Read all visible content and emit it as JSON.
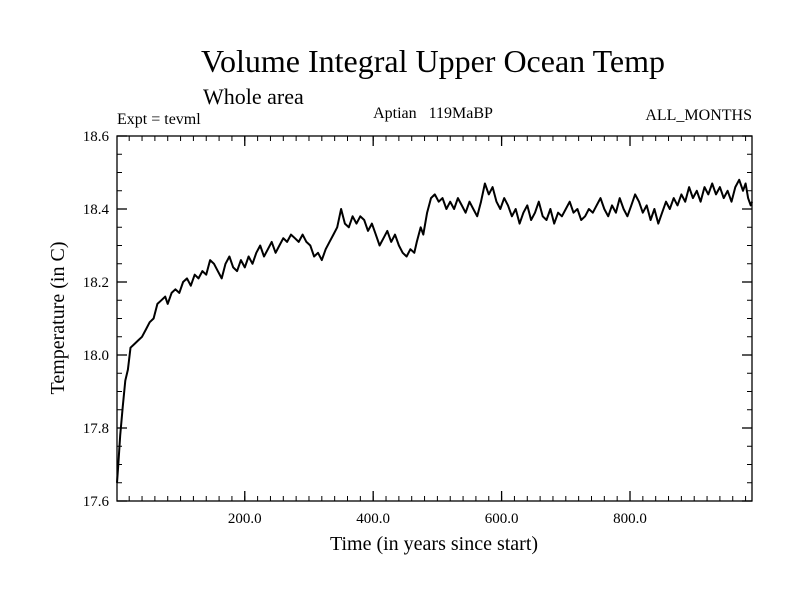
{
  "chart_data": {
    "type": "line",
    "title": "Volume Integral Upper Ocean Temp",
    "subtitle": "Whole area",
    "expt_label": "Expt = tevml",
    "center_label": "Aptian   119MaBP",
    "right_label": "ALL_MONTHS",
    "xlabel": "Time (in years since start)",
    "ylabel": "Temperature (in C)",
    "xlim": [
      1,
      990
    ],
    "ylim": [
      17.6,
      18.6
    ],
    "x_ticks": [
      {
        "value": 200,
        "label": "200.0"
      },
      {
        "value": 400,
        "label": "400.0"
      },
      {
        "value": 600,
        "label": "600.0"
      },
      {
        "value": 800,
        "label": "800.0"
      }
    ],
    "y_ticks": [
      {
        "value": 17.6,
        "label": "17.6"
      },
      {
        "value": 17.8,
        "label": "17.8"
      },
      {
        "value": 18.0,
        "label": "18.0"
      },
      {
        "value": 18.2,
        "label": "18.2"
      },
      {
        "value": 18.4,
        "label": "18.4"
      },
      {
        "value": 18.6,
        "label": "18.6"
      }
    ],
    "series": [
      {
        "name": "Volume integral upper ocean temperature",
        "color": "#000000",
        "points": [
          [
            1,
            17.65
          ],
          [
            3,
            17.7
          ],
          [
            6,
            17.78
          ],
          [
            10,
            17.86
          ],
          [
            14,
            17.93
          ],
          [
            18,
            17.96
          ],
          [
            22,
            18.02
          ],
          [
            28,
            18.03
          ],
          [
            34,
            18.04
          ],
          [
            40,
            18.05
          ],
          [
            46,
            18.07
          ],
          [
            52,
            18.09
          ],
          [
            58,
            18.1
          ],
          [
            64,
            18.14
          ],
          [
            70,
            18.15
          ],
          [
            76,
            18.16
          ],
          [
            80,
            18.14
          ],
          [
            86,
            18.17
          ],
          [
            92,
            18.18
          ],
          [
            98,
            18.17
          ],
          [
            104,
            18.2
          ],
          [
            110,
            18.21
          ],
          [
            116,
            18.19
          ],
          [
            122,
            18.22
          ],
          [
            128,
            18.21
          ],
          [
            134,
            18.23
          ],
          [
            140,
            18.22
          ],
          [
            146,
            18.26
          ],
          [
            152,
            18.25
          ],
          [
            158,
            18.23
          ],
          [
            164,
            18.21
          ],
          [
            170,
            18.25
          ],
          [
            176,
            18.27
          ],
          [
            182,
            18.24
          ],
          [
            188,
            18.23
          ],
          [
            194,
            18.26
          ],
          [
            200,
            18.24
          ],
          [
            206,
            18.27
          ],
          [
            212,
            18.25
          ],
          [
            218,
            18.28
          ],
          [
            224,
            18.3
          ],
          [
            230,
            18.27
          ],
          [
            236,
            18.29
          ],
          [
            242,
            18.31
          ],
          [
            248,
            18.28
          ],
          [
            254,
            18.3
          ],
          [
            260,
            18.32
          ],
          [
            266,
            18.31
          ],
          [
            272,
            18.33
          ],
          [
            278,
            18.32
          ],
          [
            284,
            18.31
          ],
          [
            290,
            18.33
          ],
          [
            296,
            18.31
          ],
          [
            302,
            18.3
          ],
          [
            308,
            18.27
          ],
          [
            314,
            18.28
          ],
          [
            320,
            18.26
          ],
          [
            326,
            18.29
          ],
          [
            332,
            18.31
          ],
          [
            338,
            18.33
          ],
          [
            344,
            18.35
          ],
          [
            350,
            18.4
          ],
          [
            356,
            18.36
          ],
          [
            362,
            18.35
          ],
          [
            368,
            18.38
          ],
          [
            374,
            18.36
          ],
          [
            380,
            18.38
          ],
          [
            386,
            18.37
          ],
          [
            392,
            18.34
          ],
          [
            398,
            18.36
          ],
          [
            404,
            18.33
          ],
          [
            410,
            18.3
          ],
          [
            416,
            18.32
          ],
          [
            422,
            18.34
          ],
          [
            428,
            18.31
          ],
          [
            434,
            18.33
          ],
          [
            440,
            18.3
          ],
          [
            446,
            18.28
          ],
          [
            452,
            18.27
          ],
          [
            458,
            18.29
          ],
          [
            464,
            18.28
          ],
          [
            468,
            18.31
          ],
          [
            474,
            18.35
          ],
          [
            478,
            18.33
          ],
          [
            484,
            18.39
          ],
          [
            490,
            18.43
          ],
          [
            496,
            18.44
          ],
          [
            502,
            18.42
          ],
          [
            508,
            18.43
          ],
          [
            514,
            18.4
          ],
          [
            520,
            18.42
          ],
          [
            526,
            18.4
          ],
          [
            532,
            18.43
          ],
          [
            538,
            18.41
          ],
          [
            544,
            18.39
          ],
          [
            550,
            18.42
          ],
          [
            556,
            18.4
          ],
          [
            562,
            18.38
          ],
          [
            568,
            18.42
          ],
          [
            574,
            18.47
          ],
          [
            580,
            18.44
          ],
          [
            586,
            18.46
          ],
          [
            592,
            18.42
          ],
          [
            598,
            18.4
          ],
          [
            604,
            18.43
          ],
          [
            610,
            18.41
          ],
          [
            616,
            18.38
          ],
          [
            622,
            18.4
          ],
          [
            628,
            18.36
          ],
          [
            634,
            18.39
          ],
          [
            640,
            18.41
          ],
          [
            646,
            18.37
          ],
          [
            652,
            18.39
          ],
          [
            658,
            18.42
          ],
          [
            664,
            18.38
          ],
          [
            670,
            18.37
          ],
          [
            676,
            18.4
          ],
          [
            682,
            18.36
          ],
          [
            688,
            18.39
          ],
          [
            694,
            18.38
          ],
          [
            700,
            18.4
          ],
          [
            706,
            18.42
          ],
          [
            712,
            18.39
          ],
          [
            718,
            18.4
          ],
          [
            724,
            18.37
          ],
          [
            730,
            18.38
          ],
          [
            736,
            18.4
          ],
          [
            742,
            18.39
          ],
          [
            748,
            18.41
          ],
          [
            754,
            18.43
          ],
          [
            760,
            18.4
          ],
          [
            766,
            18.38
          ],
          [
            772,
            18.41
          ],
          [
            778,
            18.39
          ],
          [
            784,
            18.43
          ],
          [
            790,
            18.4
          ],
          [
            796,
            18.38
          ],
          [
            802,
            18.41
          ],
          [
            808,
            18.44
          ],
          [
            814,
            18.42
          ],
          [
            820,
            18.39
          ],
          [
            826,
            18.41
          ],
          [
            832,
            18.37
          ],
          [
            838,
            18.4
          ],
          [
            844,
            18.36
          ],
          [
            850,
            18.39
          ],
          [
            856,
            18.42
          ],
          [
            862,
            18.4
          ],
          [
            868,
            18.43
          ],
          [
            874,
            18.41
          ],
          [
            880,
            18.44
          ],
          [
            886,
            18.42
          ],
          [
            892,
            18.46
          ],
          [
            898,
            18.43
          ],
          [
            904,
            18.45
          ],
          [
            910,
            18.42
          ],
          [
            916,
            18.46
          ],
          [
            922,
            18.44
          ],
          [
            928,
            18.47
          ],
          [
            934,
            18.44
          ],
          [
            940,
            18.46
          ],
          [
            946,
            18.43
          ],
          [
            952,
            18.45
          ],
          [
            958,
            18.42
          ],
          [
            964,
            18.46
          ],
          [
            970,
            18.48
          ],
          [
            976,
            18.45
          ],
          [
            980,
            18.47
          ],
          [
            984,
            18.43
          ],
          [
            988,
            18.41
          ],
          [
            990,
            18.42
          ]
        ]
      }
    ]
  }
}
